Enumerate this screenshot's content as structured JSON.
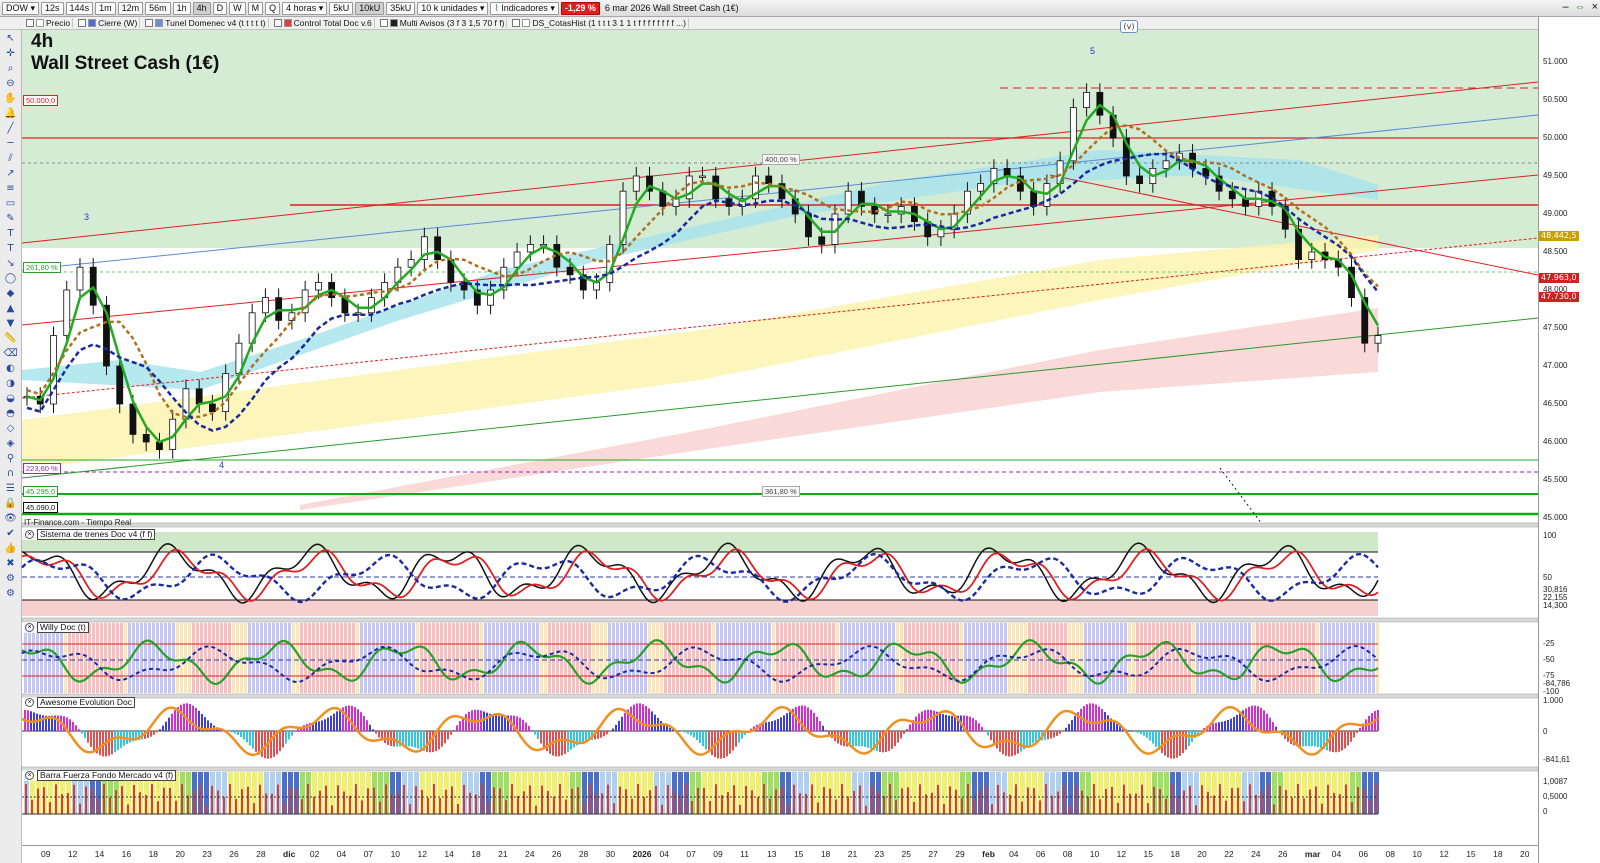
{
  "toolbar": {
    "symbol": "DOW",
    "timeframes": [
      "12s",
      "144s",
      "1m",
      "12m",
      "56m",
      "1h",
      "4h",
      "D",
      "W",
      "M",
      "Q"
    ],
    "active_timeframe": "4h",
    "period": "4 horas",
    "volumes": [
      "5kU",
      "10kU",
      "35kU"
    ],
    "active_volume": "10kU",
    "units": "10 k unidades",
    "indicators_label": "Indicadores",
    "change": "-1,29 %",
    "date_title": "6 mar 2026  Wall Street Cash (1€)"
  },
  "indicator_bar": [
    {
      "name": "Precio",
      "color": "#ffffff"
    },
    {
      "name": "Cierre (W)",
      "color": "#4a6fd0"
    },
    {
      "name": "Tunel Domenec v4 (t t t t t)",
      "color": "#6a8fd8"
    },
    {
      "name": "Control Total Doc v.6",
      "color": "#e04040"
    },
    {
      "name": "Multi Avisos (3 f 3 1,5 70 f f)",
      "color": "#222222"
    },
    {
      "name": "DS_CotasHist (1 t t t 3 1 1 t f f f f f f f f ...)",
      "color": "#ffffff"
    }
  ],
  "chart": {
    "timeframe_title": "4h",
    "instrument": "Wall Street Cash (1€)",
    "source": "IT-Finance.com - Tiempo Real",
    "v_badge": "(v)",
    "wave_labels": [
      "3",
      "4",
      "5"
    ],
    "price_axis": [
      "51.000",
      "50.500",
      "50.000",
      "49.500",
      "49.000",
      "48.500",
      "48.000",
      "47.500",
      "47.000",
      "46.500",
      "46.000",
      "45.500",
      "45.000"
    ],
    "price_tags": [
      {
        "text": "48.442,5",
        "color": "#c8a000"
      },
      {
        "text": "47.963,0",
        "color": "#d02020"
      },
      {
        "text": "47.730,0",
        "color": "#d02020"
      }
    ],
    "left_levels": [
      {
        "text": "50.000,0",
        "color": "#e02020"
      },
      {
        "text": "261,80 %",
        "color": "#2aa02a"
      },
      {
        "text": "223,60 %",
        "color": "#a020c0"
      },
      {
        "text": "45.295,0",
        "color": "#20a020"
      },
      {
        "text": "45.090,0",
        "color": "#111111"
      }
    ],
    "fib_labels": [
      "400,00 %",
      "361,80 %"
    ]
  },
  "panels": [
    {
      "title": "Sistema de trenes Doc v4 (f f)",
      "axis": [
        "100",
        "50",
        "30,816",
        "22,155",
        "14,300"
      ]
    },
    {
      "title": "Willy Doc (t)",
      "axis": [
        "-25",
        "-50",
        "-75",
        "-84,786",
        "-100"
      ]
    },
    {
      "title": "Awesome Evolution Doc",
      "axis": [
        "1.000",
        "0",
        "-841,61"
      ]
    },
    {
      "title": "Barra Fuerza Fondo Mercado v4 (f)",
      "axis": [
        "1,0087",
        "0,5000",
        "0"
      ]
    }
  ],
  "xaxis": [
    {
      "t": "09",
      "m": false
    },
    {
      "t": "12",
      "m": false
    },
    {
      "t": "14",
      "m": false
    },
    {
      "t": "16",
      "m": false
    },
    {
      "t": "18",
      "m": false
    },
    {
      "t": "20",
      "m": false
    },
    {
      "t": "23",
      "m": false
    },
    {
      "t": "26",
      "m": false
    },
    {
      "t": "28",
      "m": false
    },
    {
      "t": "dic",
      "m": true
    },
    {
      "t": "02",
      "m": false
    },
    {
      "t": "04",
      "m": false
    },
    {
      "t": "07",
      "m": false
    },
    {
      "t": "10",
      "m": false
    },
    {
      "t": "12",
      "m": false
    },
    {
      "t": "14",
      "m": false
    },
    {
      "t": "18",
      "m": false
    },
    {
      "t": "21",
      "m": false
    },
    {
      "t": "24",
      "m": false
    },
    {
      "t": "26",
      "m": false
    },
    {
      "t": "28",
      "m": false
    },
    {
      "t": "30",
      "m": false
    },
    {
      "t": "2026",
      "m": true
    },
    {
      "t": "04",
      "m": false
    },
    {
      "t": "07",
      "m": false
    },
    {
      "t": "09",
      "m": false
    },
    {
      "t": "11",
      "m": false
    },
    {
      "t": "13",
      "m": false
    },
    {
      "t": "15",
      "m": false
    },
    {
      "t": "18",
      "m": false
    },
    {
      "t": "21",
      "m": false
    },
    {
      "t": "23",
      "m": false
    },
    {
      "t": "25",
      "m": false
    },
    {
      "t": "27",
      "m": false
    },
    {
      "t": "29",
      "m": false
    },
    {
      "t": "feb",
      "m": true
    },
    {
      "t": "04",
      "m": false
    },
    {
      "t": "06",
      "m": false
    },
    {
      "t": "08",
      "m": false
    },
    {
      "t": "10",
      "m": false
    },
    {
      "t": "12",
      "m": false
    },
    {
      "t": "15",
      "m": false
    },
    {
      "t": "18",
      "m": false
    },
    {
      "t": "20",
      "m": false
    },
    {
      "t": "22",
      "m": false
    },
    {
      "t": "24",
      "m": false
    },
    {
      "t": "26",
      "m": false
    },
    {
      "t": "mar",
      "m": true
    },
    {
      "t": "04",
      "m": false
    },
    {
      "t": "06",
      "m": false
    },
    {
      "t": "08",
      "m": false
    },
    {
      "t": "10",
      "m": false
    },
    {
      "t": "12",
      "m": false
    },
    {
      "t": "15",
      "m": false
    },
    {
      "t": "18",
      "m": false
    },
    {
      "t": "20",
      "m": false
    }
  ],
  "series": {
    "colors": {
      "up": "#1a1a1a",
      "green_ma": "#22aa22",
      "red_ma": "#e02020",
      "blue_ma": "#1a2a9a",
      "brown_ma": "#b07020"
    },
    "close": [
      46600,
      46500,
      47400,
      48000,
      48300,
      47800,
      47000,
      46500,
      46100,
      46000,
      45900,
      46300,
      46700,
      46500,
      46400,
      46900,
      47300,
      47700,
      47900,
      47600,
      47700,
      48000,
      48100,
      47900,
      47700,
      47700,
      47900,
      48100,
      48300,
      48400,
      48700,
      48400,
      48100,
      48000,
      47800,
      48000,
      48300,
      48500,
      48600,
      48600,
      48300,
      48200,
      48000,
      48100,
      48600,
      49300,
      49500,
      49300,
      49100,
      49200,
      49500,
      49500,
      49200,
      49100,
      49200,
      49500,
      49400,
      49200,
      49000,
      48700,
      48600,
      49000,
      49300,
      49100,
      49000,
      49000,
      49100,
      48900,
      48700,
      48800,
      49000,
      49300,
      49400,
      49600,
      49500,
      49300,
      49100,
      49400,
      49700,
      50400,
      50600,
      50300,
      50000,
      49500,
      49400,
      49600,
      49700,
      49800,
      49600,
      49500,
      49300,
      49200,
      49100,
      49300,
      49100,
      48800,
      48400,
      48500,
      48400,
      48300,
      47900,
      47300,
      47400
    ]
  }
}
